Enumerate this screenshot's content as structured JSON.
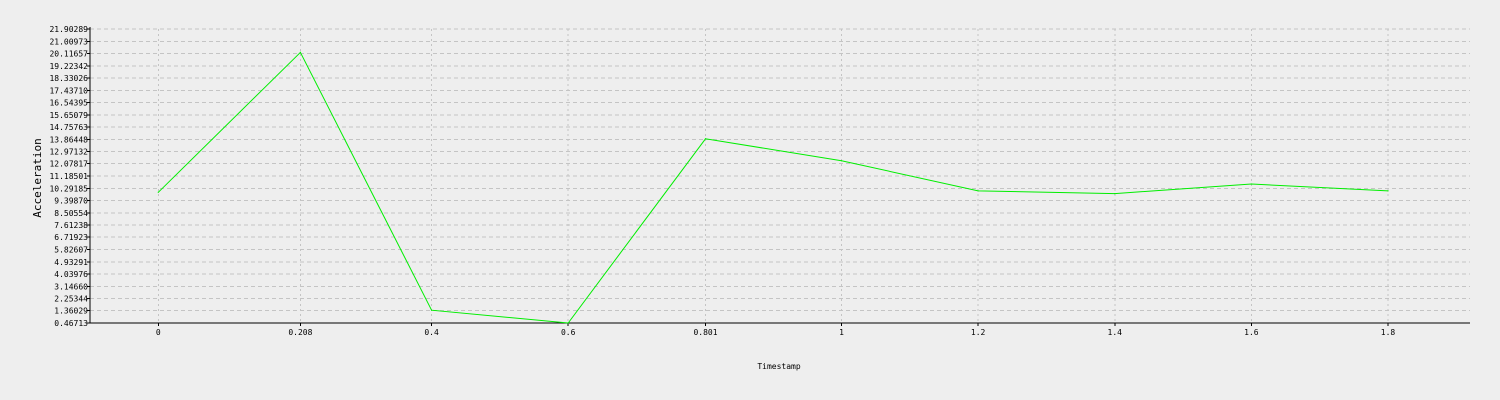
{
  "chart_data": {
    "type": "line",
    "xlabel": "Timestamp",
    "ylabel": "Acceleration",
    "x_ticks": [
      "0",
      "0.208",
      "0.4",
      "0.6",
      "0.801",
      "1",
      "1.2",
      "1.4",
      "1.6",
      "1.8"
    ],
    "y_ticks": [
      "0.46713",
      "1.36029",
      "2.25344",
      "3.14660",
      "4.03976",
      "4.93291",
      "5.82607",
      "6.71923",
      "7.61238",
      "8.50554",
      "9.39870",
      "10.29185",
      "11.18501",
      "12.07817",
      "12.97132",
      "13.86448",
      "14.75763",
      "15.65079",
      "16.54395",
      "17.43710",
      "18.33026",
      "19.22342",
      "20.11657",
      "21.00973",
      "21.90289"
    ],
    "ylim": [
      0.46713,
      21.90289
    ],
    "xlim": [
      -0.1,
      1.92
    ],
    "grid": true,
    "series": [
      {
        "color": "#00ee00",
        "x": [
          0,
          0.208,
          0.4,
          0.6,
          0.801,
          1.0,
          1.2,
          1.4,
          1.6,
          1.8
        ],
        "values": [
          10.0,
          20.2,
          1.4,
          0.47,
          13.9,
          12.3,
          10.1,
          9.9,
          10.6,
          10.1
        ]
      }
    ]
  }
}
